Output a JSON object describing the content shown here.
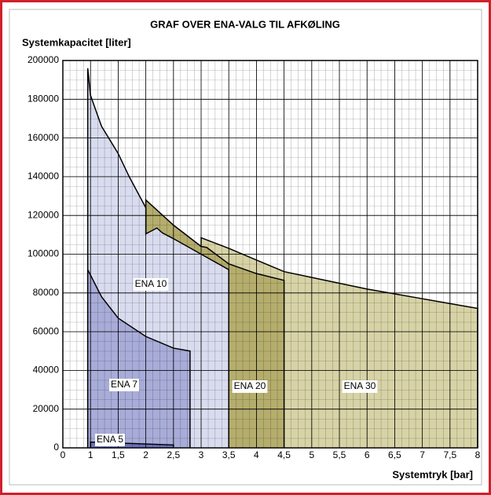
{
  "chart_data": {
    "type": "area",
    "title": "GRAF OVER ENA-VALG TIL AFKØLING",
    "y_label": "Systemkapacitet [liter]",
    "x_label": "Systemtryk [bar]",
    "xlim": [
      0,
      8
    ],
    "xticks": [
      0,
      1,
      {
        "value": 1.5,
        "label": "1,5"
      },
      2,
      {
        "value": 2.5,
        "label": "2,5"
      },
      3,
      {
        "value": 3.5,
        "label": "3,5"
      },
      4,
      {
        "value": 4.5,
        "label": "4,5"
      },
      5,
      {
        "value": 5.5,
        "label": "5,5"
      },
      6,
      {
        "value": 6.5,
        "label": "6,5"
      },
      7,
      {
        "value": 7.5,
        "label": "7,5"
      },
      8
    ],
    "ylim": [
      0,
      200000
    ],
    "yticks": [
      0,
      20000,
      40000,
      60000,
      80000,
      100000,
      120000,
      140000,
      160000,
      180000,
      200000
    ],
    "grid": true,
    "series": [
      {
        "name": "ENA 30",
        "color": "#d8d3a6",
        "x": [
          3,
          3.5,
          4,
          4.5,
          5,
          5.5,
          6,
          6.5,
          7,
          7.5,
          8
        ],
        "values": [
          108500,
          103000,
          97000,
          91000,
          88000,
          85000,
          82000,
          79500,
          77000,
          74500,
          72000
        ]
      },
      {
        "name": "ENA 20",
        "color": "#b5ad6c",
        "x": [
          2,
          2.5,
          3,
          3.1,
          3.5,
          4,
          4.5
        ],
        "values": [
          128000,
          115000,
          104000,
          103500,
          95000,
          90000,
          86500
        ]
      },
      {
        "name": "ENA 10",
        "color": "#d9dcef",
        "x": [
          0.9,
          1,
          1.2,
          1.5,
          1.7,
          2,
          2,
          2.2,
          2.3,
          2.5,
          3,
          3.5
        ],
        "values": [
          196000,
          182000,
          166000,
          152000,
          140000,
          124000,
          110500,
          113500,
          111000,
          108000,
          100000,
          92000
        ]
      },
      {
        "name": "ENA 7",
        "color": "#a8acd8",
        "x": [
          0.9,
          1.2,
          1.5,
          2,
          2.5,
          2.8
        ],
        "values": [
          92000,
          78000,
          67000,
          57500,
          51500,
          50000
        ]
      },
      {
        "name": "ENA 5",
        "color": "#6a70b8",
        "x": [
          1,
          2.5
        ],
        "values": [
          3000,
          1500
        ]
      }
    ]
  }
}
